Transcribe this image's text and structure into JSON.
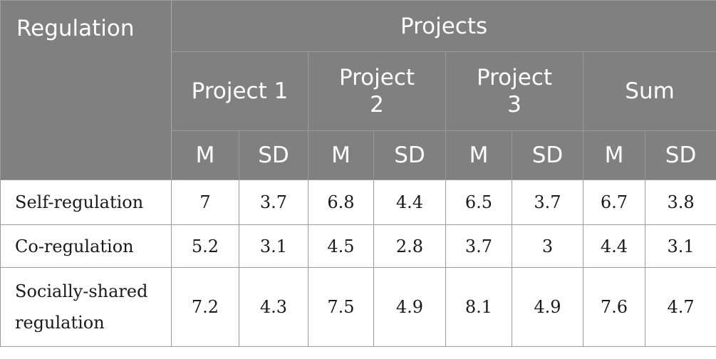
{
  "header": {
    "regulation_label": "Regulation",
    "projects_label": "Projects",
    "groups": [
      {
        "name_lines": [
          "Project 1"
        ]
      },
      {
        "name_lines": [
          "Project",
          "2"
        ]
      },
      {
        "name_lines": [
          "Project",
          "3"
        ]
      },
      {
        "name_lines": [
          "Sum"
        ]
      }
    ],
    "m_label": "M",
    "sd_label": "SD"
  },
  "rows": [
    {
      "label_lines": [
        "Self-regulation"
      ],
      "values": [
        "7",
        "3.7",
        "6.8",
        "4.4",
        "6.5",
        "3.7",
        "6.7",
        "3.8"
      ]
    },
    {
      "label_lines": [
        "Co-regulation"
      ],
      "values": [
        "5.2",
        "3.1",
        "4.5",
        "2.8",
        "3.7",
        "3",
        "4.4",
        "3.1"
      ]
    },
    {
      "label_lines": [
        "Socially-shared",
        "regulation"
      ],
      "values": [
        "7.2",
        "4.3",
        "7.5",
        "4.9",
        "8.1",
        "4.9",
        "7.6",
        "4.7"
      ]
    }
  ],
  "colors": {
    "header_bg": "#808080",
    "header_text": "#ffffff",
    "grid": "#9a9a9a",
    "body_text": "#1a1a1a"
  }
}
